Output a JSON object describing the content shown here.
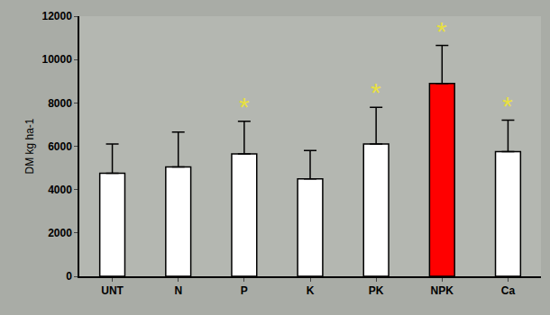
{
  "chart_data": {
    "type": "bar",
    "y_label": "DM kg ha-1",
    "categories": [
      "UNT",
      "N",
      "P",
      "K",
      "PK",
      "NPK",
      "Ca"
    ],
    "values": [
      4750,
      5050,
      5650,
      4500,
      6100,
      8900,
      5750
    ],
    "errors": [
      1350,
      1600,
      1500,
      1300,
      1700,
      1750,
      1450
    ],
    "colors": [
      "#ffffff",
      "#ffffff",
      "#ffffff",
      "#ffffff",
      "#ffffff",
      "#ff0000",
      "#ffffff"
    ],
    "ylim": [
      0,
      12000
    ],
    "yticks": [
      0,
      2000,
      4000,
      6000,
      8000,
      10000,
      12000
    ],
    "grid": false,
    "annotations": [
      {
        "text": "*",
        "category": "P",
        "color": "#e8e040"
      },
      {
        "text": "*",
        "category": "PK",
        "color": "#e8e040"
      },
      {
        "text": "*",
        "category": "NPK",
        "color": "#e8e040"
      },
      {
        "text": "*",
        "category": "Ca",
        "color": "#e8e040"
      }
    ]
  }
}
